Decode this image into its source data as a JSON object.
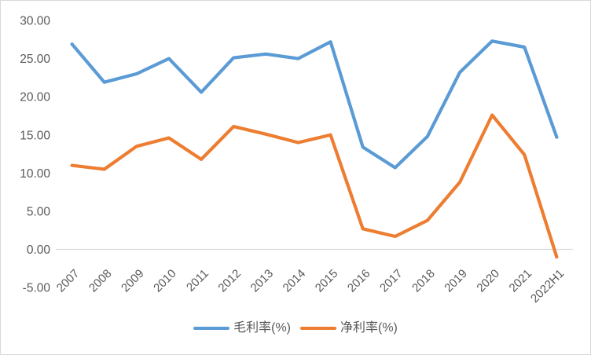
{
  "chart_data": {
    "type": "line",
    "title": "",
    "xlabel": "",
    "ylabel": "",
    "categories": [
      "2007",
      "2008",
      "2009",
      "2010",
      "2011",
      "2012",
      "2013",
      "2014",
      "2015",
      "2016",
      "2017",
      "2018",
      "2019",
      "2020",
      "2021",
      "2022H1"
    ],
    "series": [
      {
        "name": "毛利率(%)",
        "color": "#5b9bd5",
        "values": [
          26.9,
          21.9,
          23.0,
          25.0,
          20.6,
          25.1,
          25.6,
          25.0,
          27.2,
          13.4,
          10.7,
          14.8,
          23.2,
          27.3,
          26.5,
          14.7
        ]
      },
      {
        "name": "净利率(%)",
        "color": "#ed7d31",
        "values": [
          11.0,
          10.5,
          13.5,
          14.6,
          11.8,
          16.1,
          15.1,
          14.0,
          15.0,
          2.7,
          1.7,
          3.8,
          8.8,
          17.6,
          12.4,
          -1.0
        ]
      }
    ],
    "ylim": [
      -5,
      30
    ],
    "y_tick_step": 5,
    "y_ticks": [
      "30.00",
      "25.00",
      "20.00",
      "15.00",
      "10.00",
      "5.00",
      "0.00",
      "-5.00"
    ],
    "grid": false,
    "axis_line_at_zero": true,
    "x_label_rotation_deg": 45,
    "legend_position": "bottom-center",
    "colors": {
      "axis_text": "#595959",
      "axis_line": "#d9d9d9",
      "frame_border": "#d9d9d9",
      "background": "#ffffff"
    }
  }
}
